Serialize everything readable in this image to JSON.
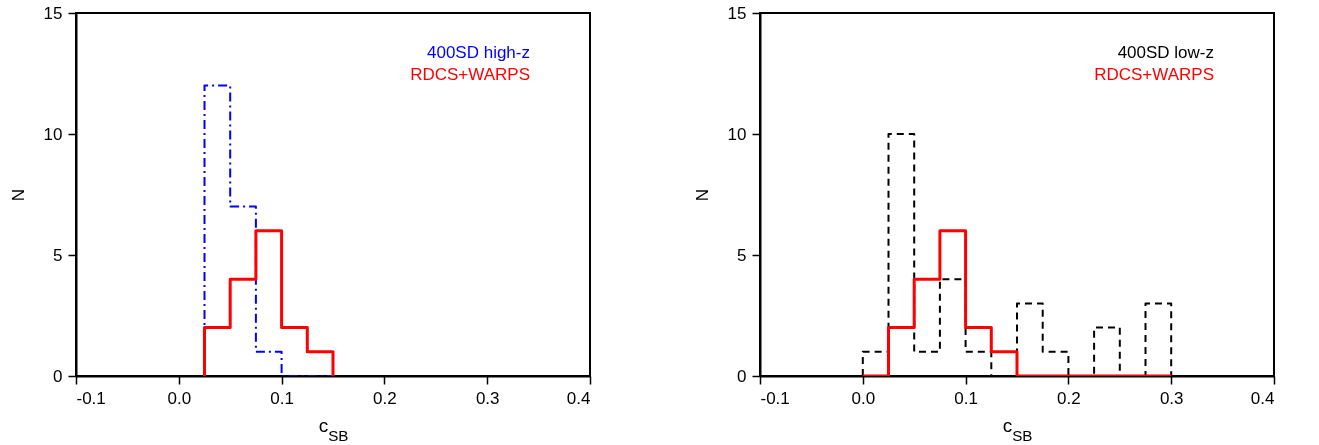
{
  "chart_data": [
    {
      "type": "histogram",
      "xlabel": "c$_{SB}$",
      "ylabel": "N",
      "xlim": [
        -0.1,
        0.4
      ],
      "xticks": [
        -0.1,
        {
          "value": 0,
          "label": "0.0"
        },
        0.1,
        0.2,
        0.3,
        0.4
      ],
      "ylim": [
        0,
        15
      ],
      "yticks": [
        0,
        5,
        10,
        15
      ],
      "grid": false,
      "bins": [
        0.025,
        0.05,
        0.075,
        0.1,
        0.125,
        0.15
      ],
      "series": [
        {
          "name": "400SD high-z",
          "color": "#0000ff",
          "line_style": "dashdot",
          "values": [
            12,
            7,
            1,
            0,
            0
          ]
        },
        {
          "name": "RDCS+WARPS",
          "color": "#ff0000",
          "line_style": "solid",
          "values": [
            2,
            4,
            6,
            2,
            1
          ]
        }
      ]
    },
    {
      "type": "histogram",
      "xlabel": "c$_{SB}$",
      "ylabel": "N",
      "xlim": [
        -0.1,
        0.4
      ],
      "xticks": [
        -0.1,
        {
          "value": 0,
          "label": "0.0"
        },
        0.1,
        0.2,
        0.3,
        0.4
      ],
      "ylim": [
        0,
        15
      ],
      "yticks": [
        0,
        5,
        10,
        15
      ],
      "grid": false,
      "bins": [
        0,
        0.025,
        0.05,
        0.075,
        0.1,
        0.125,
        0.15,
        0.175,
        0.2,
        0.225,
        0.25,
        0.275,
        0.3
      ],
      "series": [
        {
          "name": "400SD low-z",
          "color": "#000000",
          "line_style": "dashed",
          "values": [
            1,
            10,
            1,
            4,
            1,
            0,
            3,
            1,
            0,
            2,
            0,
            3
          ]
        },
        {
          "name": "RDCS+WARPS",
          "color": "#ff0000",
          "line_style": "solid",
          "values": [
            0,
            2,
            4,
            6,
            2,
            1,
            0,
            0,
            0,
            0,
            0,
            0
          ]
        }
      ]
    }
  ]
}
